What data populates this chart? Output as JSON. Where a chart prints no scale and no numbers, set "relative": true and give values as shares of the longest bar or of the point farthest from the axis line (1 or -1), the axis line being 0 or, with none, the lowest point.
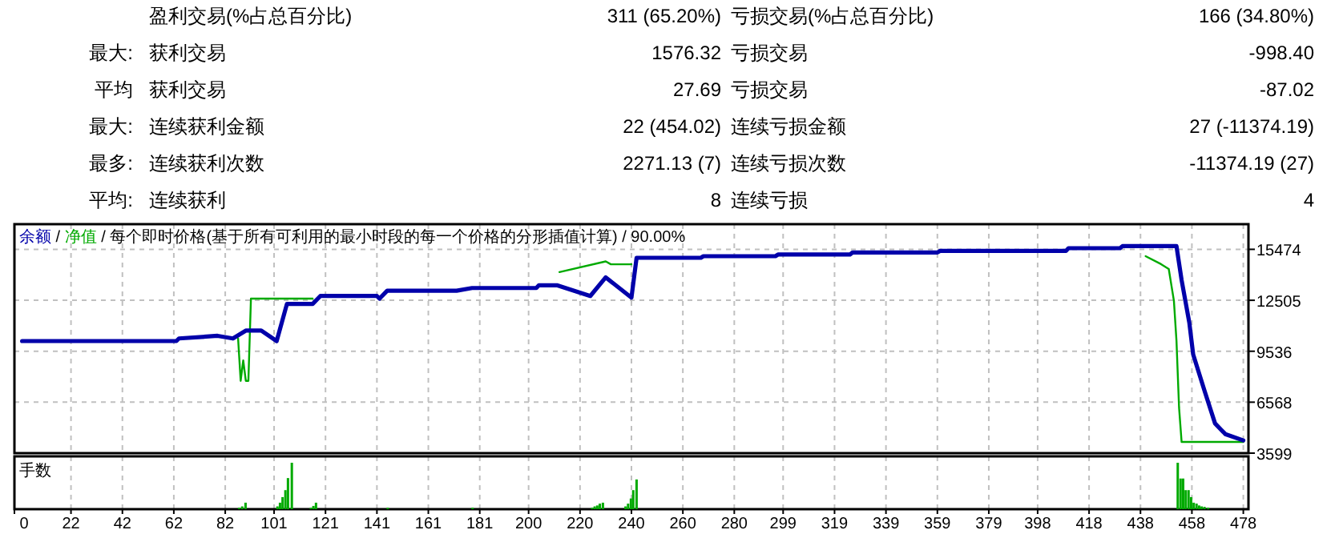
{
  "chart_data": [
    {
      "type": "other",
      "annotations": [
        "盈利交易(%占总百分比)",
        "311 (65.20%)",
        "亏损交易(%占总百分比)",
        "166 (34.80%)",
        "最大:",
        "获利交易",
        "1576.32",
        "亏损交易",
        "-998.40",
        "平均",
        "获利交易",
        "27.69",
        "亏损交易",
        "-87.02",
        "最大:",
        "连续获利金额",
        "22 (454.02)",
        "连续亏损金额",
        "27 (-11374.19)",
        "最多:",
        "连续获利次数",
        "2271.13 (7)",
        "连续亏损次数",
        "-11374.19 (27)",
        "平均:",
        "连续获利",
        "8",
        "连续亏损",
        "4"
      ]
    },
    {
      "type": "line",
      "annotations": [
        "/"
      ],
      "title": "每个即时价格(基于所有可利用的最小时段的每一个价格的分形插值计算) / 90.00%",
      "legend": "top left",
      "grid": true,
      "tick_labels": "y",
      "xlim": [
        0,
        480
      ],
      "xticks": [
        0,
        22,
        42,
        62,
        82,
        101,
        121,
        141,
        161,
        181,
        200,
        220,
        240,
        260,
        280,
        299,
        319,
        339,
        359,
        379,
        398,
        418,
        438,
        458,
        478
      ],
      "ylim": [
        3599,
        16940
      ],
      "yticks": [
        3599,
        6568,
        9536,
        12505,
        15474
      ],
      "series": [
        {
          "name": "余额",
          "color": "#0000aa",
          "x": [
            3,
            63,
            64,
            79,
            85,
            90,
            96,
            102,
            106,
            116,
            119,
            141,
            142,
            145,
            172,
            178,
            203,
            204,
            211,
            224,
            230,
            240,
            242,
            267,
            268,
            296,
            297,
            325,
            326,
            359,
            360,
            409,
            410,
            430,
            431,
            452,
            454,
            457,
            458.5,
            463,
            467,
            471,
            478
          ],
          "values": [
            10130,
            10130,
            10280,
            10435,
            10280,
            10740,
            10740,
            10130,
            12290,
            12290,
            12755,
            12755,
            12600,
            13060,
            13060,
            13220,
            13220,
            13380,
            13380,
            12755,
            13840,
            12660,
            14980,
            14980,
            15075,
            15075,
            15170,
            15170,
            15290,
            15290,
            15380,
            15380,
            15540,
            15540,
            15660,
            15660,
            13680,
            11200,
            9350,
            7190,
            5330,
            4710,
            4340
          ]
        },
        {
          "name": "净值",
          "color": "#00aa00",
          "x": [
            87,
            88,
            89,
            90,
            91,
            92,
            116,
            null,
            212,
            230,
            232,
            240,
            null,
            440,
            446,
            449,
            451,
            452,
            453,
            454,
            478
          ],
          "values": [
            10280,
            7810,
            9000,
            7810,
            7810,
            12600,
            12600,
            null,
            14150,
            14770,
            14600,
            14600,
            null,
            15075,
            14610,
            14330,
            12480,
            10160,
            6260,
            4250,
            4250
          ]
        }
      ]
    },
    {
      "type": "bar",
      "title": "手数",
      "relative": true,
      "color": "#00aa00",
      "grid": "x",
      "tick_labels": "x",
      "xlim": [
        0,
        480
      ],
      "xticks": [
        0,
        22,
        42,
        62,
        82,
        101,
        121,
        141,
        161,
        181,
        200,
        220,
        240,
        260,
        280,
        299,
        319,
        339,
        359,
        379,
        398,
        418,
        438,
        458,
        478
      ],
      "x": [
        87.4,
        88.6,
        89.9,
        102.3,
        103.3,
        104.3,
        105.4,
        106.4,
        107.9,
        115.3,
        116.3,
        117.3,
        145.2,
        178.2,
        224.7,
        225.7,
        226.7,
        227.7,
        228.9,
        237.7,
        238.7,
        239.8,
        240.7,
        242,
        452.5,
        453.6,
        454.6,
        455.6,
        456.7,
        457.7,
        458.7,
        459.8,
        460.8,
        461.8,
        462.9,
        464.3
      ],
      "values": [
        0.03,
        0.06,
        0.14,
        0.06,
        0.14,
        0.26,
        0.41,
        0.67,
        1,
        0.03,
        0.07,
        0.14,
        0.03,
        0.03,
        0.03,
        0.06,
        0.08,
        0.12,
        0.14,
        0.06,
        0.12,
        0.23,
        0.41,
        0.64,
        1,
        0.66,
        0.66,
        0.41,
        0.41,
        0.26,
        0.14,
        0.12,
        0.08,
        0.06,
        0.05,
        0.03
      ]
    }
  ]
}
